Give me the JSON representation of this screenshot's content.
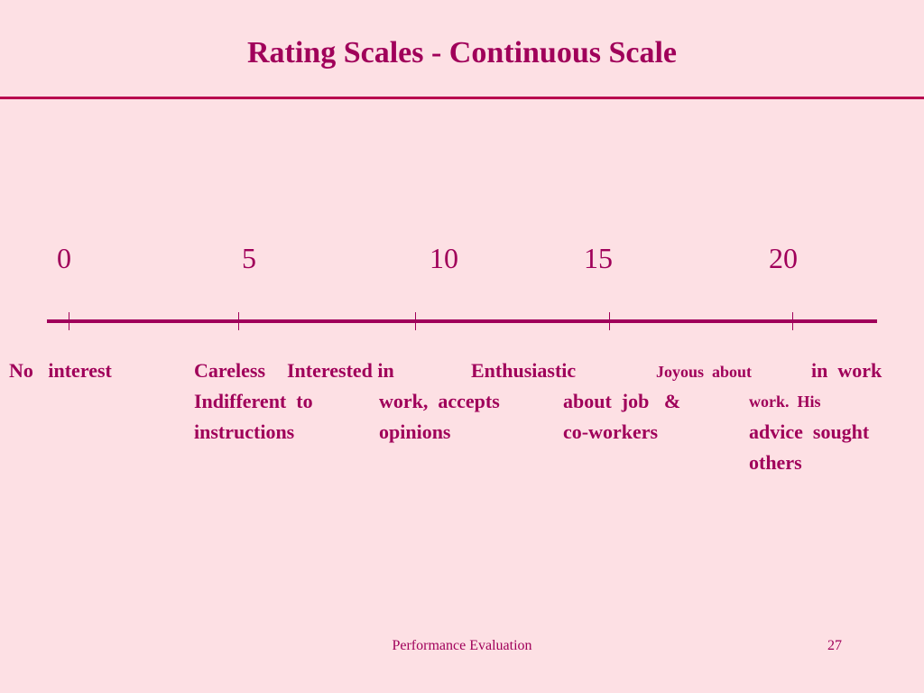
{
  "slide": {
    "title": "Rating Scales  - Continuous  Scale"
  },
  "scale": {
    "numbers": [
      "0",
      "5",
      "10",
      "15",
      "20"
    ],
    "labels": {
      "no_interest": "No   interest",
      "careless_line1": "Careless",
      "careless_line2": "Indifferent  to",
      "careless_line3": "instructions",
      "interested_line1": "Interested in",
      "interested_line2": "work,  accepts",
      "interested_line3": "opinions",
      "enthusiastic_line1": "Enthusiastic",
      "enthusiastic_line2": "about  job   &",
      "enthusiastic_line3": "co-workers",
      "joyous_line1a": "Joyous  about",
      "joyous_line1b": "in  work",
      "joyous_line2": "work.  His",
      "joyous_line3": "advice  sought",
      "joyous_line4": "others"
    }
  },
  "footer": {
    "title": "Performance Evaluation",
    "page_number": "27"
  },
  "colors": {
    "background": "#fde0e4",
    "accent": "#a0005a"
  }
}
